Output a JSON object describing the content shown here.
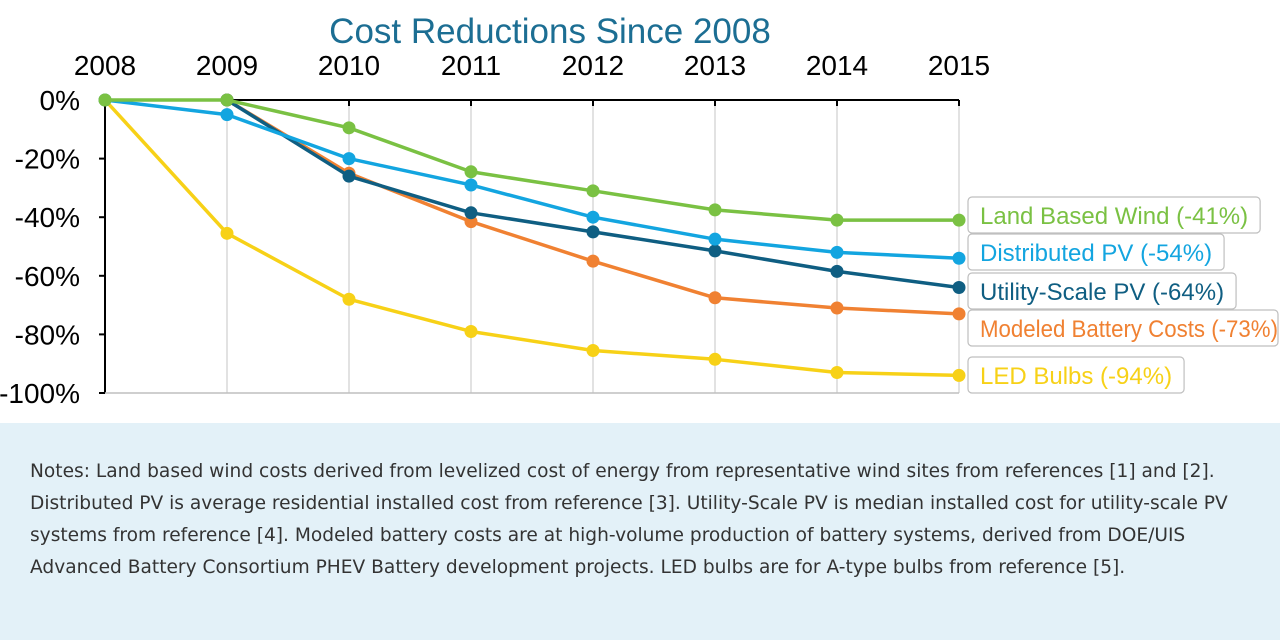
{
  "chart_data": {
    "type": "line",
    "title": "Cost Reductions Since 2008",
    "x": [
      "2008",
      "2009",
      "2010",
      "2011",
      "2012",
      "2013",
      "2014",
      "2015"
    ],
    "y_ticks": [
      "0%",
      "-20%",
      "-40%",
      "-60%",
      "-80%",
      "-100%"
    ],
    "ylim": [
      -100,
      0
    ],
    "x_axis_position": "top",
    "grid": "vertical",
    "legend": "right, labels at line ends",
    "series": [
      {
        "name": "Land Based Wind (-41%)",
        "color": "#7ac143",
        "x": [
          "2008",
          "2009",
          "2010",
          "2011",
          "2012",
          "2013",
          "2014",
          "2015"
        ],
        "values": [
          0,
          0,
          -9.5,
          -24.5,
          -31,
          -37.5,
          -41,
          -41
        ]
      },
      {
        "name": "Distributed PV (-54%)",
        "color": "#13a5e0",
        "x": [
          "2008",
          "2009",
          "2010",
          "2011",
          "2012",
          "2013",
          "2014",
          "2015"
        ],
        "values": [
          0,
          -5,
          -20,
          -29,
          -40,
          -47.5,
          -52,
          -54
        ]
      },
      {
        "name": "Utility-Scale PV (-64%)",
        "color": "#0f5e82",
        "x": [
          "2009",
          "2010",
          "2011",
          "2012",
          "2013",
          "2014",
          "2015"
        ],
        "values": [
          0,
          -26,
          -38.5,
          -45,
          -51.5,
          -58.5,
          -64
        ]
      },
      {
        "name": "Modeled Battery Costs (-73%)",
        "color": "#f08132",
        "x": [
          "2009",
          "2010",
          "2011",
          "2012",
          "2013",
          "2014",
          "2015"
        ],
        "values": [
          0,
          -25,
          -41.5,
          -55,
          -67.5,
          -71,
          -73
        ]
      },
      {
        "name": "LED Bulbs (-94%)",
        "color": "#f7d117",
        "x": [
          "2008",
          "2009",
          "2010",
          "2011",
          "2012",
          "2013",
          "2014",
          "2015"
        ],
        "values": [
          0,
          -45.5,
          -68,
          -79,
          -85.5,
          -88.5,
          -93,
          -94
        ]
      }
    ]
  },
  "title_color": "#1c6e93",
  "notes": "Notes: Land based wind costs derived from levelized cost of energy from representative wind sites from references [1] and [2]. Distributed PV is average residential installed cost from reference [3]. Utility-Scale PV is median installed cost for utility-scale PV systems from reference [4]. Modeled battery costs are at high-volume production of battery systems, derived from DOE/UIS Advanced Battery Consortium PHEV Battery development projects. LED bulbs are for A-type bulbs from reference [5].",
  "notes_background": "#e3f1f8"
}
